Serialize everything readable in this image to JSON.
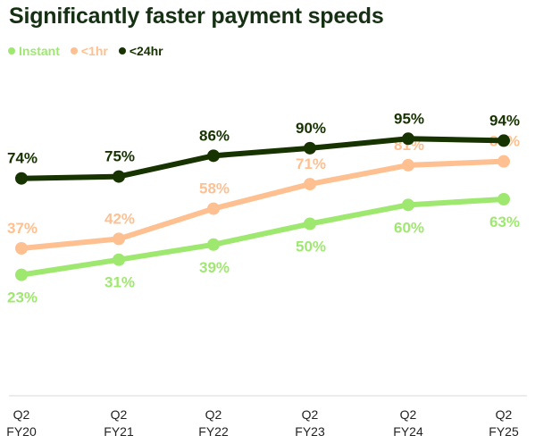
{
  "chart_data": {
    "type": "line",
    "title": "Significantly faster payment speeds",
    "categories": [
      [
        "Q2",
        "FY20"
      ],
      [
        "Q2",
        "FY21"
      ],
      [
        "Q2",
        "FY22"
      ],
      [
        "Q2",
        "FY23"
      ],
      [
        "Q2",
        "FY24"
      ],
      [
        "Q2",
        "FY25"
      ]
    ],
    "series": [
      {
        "name": "Instant",
        "color": "#9FE870",
        "values": [
          23,
          31,
          39,
          50,
          60,
          63
        ],
        "labels": [
          "23%",
          "31%",
          "39%",
          "50%",
          "60%",
          "63%"
        ],
        "label_position": "below"
      },
      {
        "name": "<1hr",
        "color": "#FFC091",
        "values": [
          37,
          42,
          58,
          71,
          81,
          83
        ],
        "labels": [
          "37%",
          "42%",
          "58%",
          "71%",
          "81%",
          "83%"
        ],
        "label_position": "above"
      },
      {
        "name": "<24hr",
        "color": "#163300",
        "values": [
          74,
          75,
          86,
          90,
          95,
          94
        ],
        "labels": [
          "74%",
          "75%",
          "86%",
          "90%",
          "95%",
          "94%"
        ],
        "label_position": "above"
      }
    ],
    "legend": "top-left",
    "grid": false,
    "ylim": [
      20,
      100
    ],
    "xlabel": "",
    "ylabel": "",
    "baseline_color": "#d9d9d9",
    "title_color": "#163014"
  }
}
